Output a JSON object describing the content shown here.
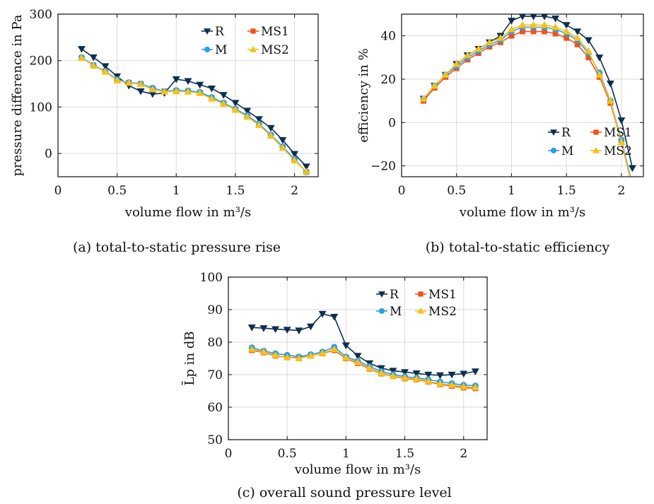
{
  "colors": {
    "R": "#0d2f4f",
    "M": "#2e9fe6",
    "MS1": "#f0521c",
    "MS2": "#f6c21a"
  },
  "markers": {
    "R": "triangle-down",
    "M": "circle",
    "MS1": "square",
    "MS2": "triangle-up"
  },
  "chart_data": [
    {
      "type": "line",
      "caption": "(a) total-to-static pressure rise",
      "xlabel": "volume flow in m³/s",
      "ylabel": "pressure difference in Pa",
      "xlim": [
        0,
        2.2
      ],
      "ylim": [
        -50,
        300
      ],
      "xticks": [
        0,
        0.5,
        1,
        1.5,
        2
      ],
      "xticklabels": [
        "0",
        "0.5",
        "1",
        "1.5",
        "2"
      ],
      "yticks": [
        0,
        100,
        200,
        300
      ],
      "yticklabels": [
        "0",
        "100",
        "200",
        "300"
      ],
      "grid": true,
      "legend_position": "top-right",
      "x": [
        0.2,
        0.3,
        0.4,
        0.5,
        0.6,
        0.7,
        0.8,
        0.9,
        1.0,
        1.1,
        1.2,
        1.3,
        1.4,
        1.5,
        1.6,
        1.7,
        1.8,
        1.9,
        2.0,
        2.1
      ],
      "series": [
        {
          "name": "R",
          "values": [
            225,
            207,
            188,
            166,
            146,
            134,
            128,
            130,
            160,
            156,
            148,
            140,
            126,
            109,
            92,
            74,
            55,
            29,
            -1,
            -28
          ]
        },
        {
          "name": "MS1",
          "values": [
            206,
            190,
            177,
            158,
            152,
            150,
            140,
            134,
            135,
            134,
            131,
            119,
            108,
            95,
            80,
            62,
            39,
            13,
            -14,
            -40
          ]
        },
        {
          "name": "M",
          "values": [
            207,
            190,
            177,
            159,
            153,
            150,
            141,
            134,
            136,
            135,
            132,
            121,
            109,
            96,
            82,
            64,
            40,
            15,
            -12,
            -40
          ]
        },
        {
          "name": "MS2",
          "values": [
            206,
            189,
            176,
            157,
            152,
            149,
            138,
            133,
            134,
            133,
            130,
            118,
            107,
            94,
            79,
            61,
            38,
            12,
            -15,
            -39
          ]
        }
      ]
    },
    {
      "type": "line",
      "caption": "(b) total-to-static efficiency",
      "xlabel": "volume flow in m³/s",
      "ylabel": "efficiency in %",
      "xlim": [
        0,
        2.2
      ],
      "ylim": [
        -25,
        50
      ],
      "xticks": [
        0,
        0.5,
        1,
        1.5,
        2
      ],
      "xticklabels": [
        "0",
        "0.5",
        "1",
        "1.5",
        "2"
      ],
      "yticks": [
        -20,
        0,
        20,
        40
      ],
      "yticklabels": [
        "−20",
        "0",
        "20",
        "40"
      ],
      "grid": true,
      "legend_position": "bottom-right",
      "x": [
        0.2,
        0.3,
        0.4,
        0.5,
        0.6,
        0.7,
        0.8,
        0.9,
        1.0,
        1.1,
        1.2,
        1.3,
        1.4,
        1.5,
        1.6,
        1.7,
        1.8,
        1.9,
        2.0,
        2.1
      ],
      "series": [
        {
          "name": "R",
          "values": [
            11,
            17,
            22,
            27,
            31,
            34,
            37,
            40,
            47,
            49,
            49,
            49,
            48,
            45,
            42,
            38,
            30,
            18,
            1,
            -21
          ]
        },
        {
          "name": "MS1",
          "values": [
            10,
            16,
            21,
            25,
            29,
            32,
            35,
            37,
            40,
            42,
            42,
            42,
            41,
            39,
            36,
            30,
            21,
            9,
            -9,
            -30
          ]
        },
        {
          "name": "M",
          "values": [
            11,
            17,
            22,
            26,
            30,
            33,
            36,
            38,
            42,
            44,
            44,
            44,
            43,
            41,
            38,
            32,
            23,
            10,
            -8,
            -29
          ]
        },
        {
          "name": "MS2",
          "values": [
            11,
            17,
            22,
            27,
            31,
            34,
            37,
            39,
            43,
            45,
            45,
            45,
            44,
            42,
            39,
            33,
            22,
            10,
            -9,
            -30
          ]
        }
      ]
    },
    {
      "type": "line",
      "caption": "(c) overall sound pressure level",
      "xlabel": "volume flow in m³/s",
      "ylabel": "L̄p in dB",
      "xlim": [
        0,
        2.2
      ],
      "ylim": [
        50,
        100
      ],
      "xticks": [
        0,
        0.5,
        1,
        1.5,
        2
      ],
      "xticklabels": [
        "0",
        "0.5",
        "1",
        "1.5",
        "2"
      ],
      "yticks": [
        50,
        60,
        70,
        80,
        90,
        100
      ],
      "yticklabels": [
        "50",
        "60",
        "70",
        "80",
        "90",
        "100"
      ],
      "grid": true,
      "legend_position": "top-right",
      "x": [
        0.2,
        0.3,
        0.4,
        0.5,
        0.6,
        0.7,
        0.8,
        0.9,
        1.0,
        1.1,
        1.2,
        1.3,
        1.4,
        1.5,
        1.6,
        1.7,
        1.8,
        1.9,
        2.0,
        2.1
      ],
      "series": [
        {
          "name": "R",
          "values": [
            84.5,
            84.3,
            84.0,
            83.8,
            83.6,
            84.8,
            88.7,
            87.8,
            79.0,
            75.8,
            73.5,
            72.0,
            71.2,
            70.8,
            70.4,
            70.0,
            69.8,
            70.0,
            70.3,
            71.0
          ]
        },
        {
          "name": "MS1",
          "values": [
            77.5,
            76.8,
            75.8,
            75.3,
            75.2,
            75.8,
            76.5,
            77.5,
            75.0,
            73.5,
            71.8,
            70.3,
            69.5,
            68.8,
            68.5,
            67.8,
            67.0,
            66.5,
            66.0,
            65.8
          ]
        },
        {
          "name": "M",
          "values": [
            78.3,
            77.3,
            76.5,
            76.0,
            75.5,
            76.2,
            77.0,
            78.5,
            75.5,
            74.2,
            72.5,
            71.0,
            70.0,
            69.4,
            69.0,
            68.5,
            67.8,
            67.3,
            66.8,
            66.6
          ]
        },
        {
          "name": "MS2",
          "values": [
            77.8,
            77.0,
            76.0,
            75.3,
            75.0,
            75.8,
            76.6,
            77.8,
            75.2,
            73.8,
            72.0,
            70.5,
            69.6,
            69.0,
            68.7,
            68.0,
            67.2,
            66.8,
            66.3,
            66.1
          ]
        }
      ]
    }
  ]
}
